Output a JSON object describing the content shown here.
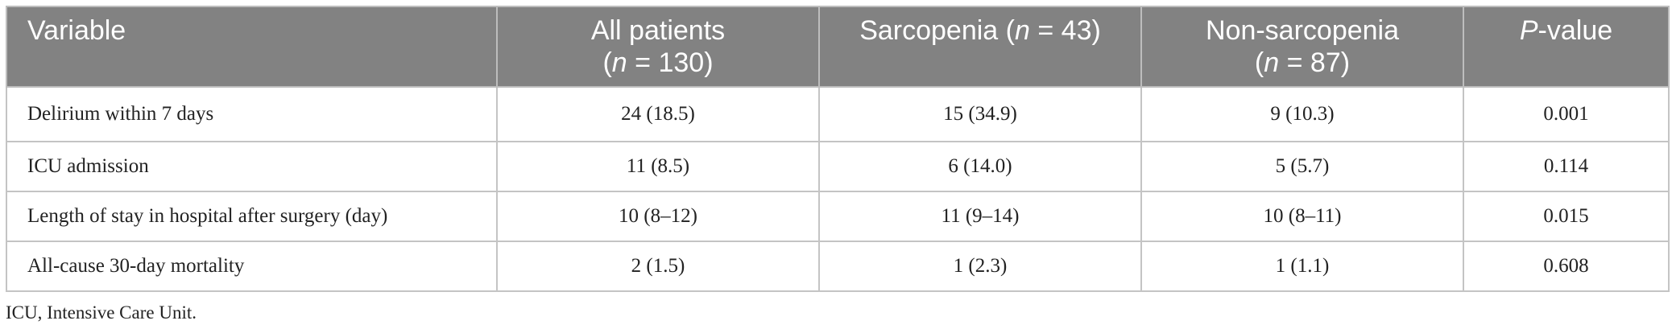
{
  "table": {
    "headers": {
      "variable": "Variable",
      "all_patients_line1": "All patients",
      "all_patients_n_sym": "n",
      "all_patients_n_rest": " = 130)",
      "sarcopenia_pre": "Sarcopenia (",
      "sarcopenia_n_sym": "n",
      "sarcopenia_rest": " = 43)",
      "non_sarcopenia_line1": "Non-sarcopenia",
      "non_sarcopenia_n_sym": "n",
      "non_sarcopenia_n_rest": " = 87)",
      "p_sym": "P",
      "p_rest": "-value"
    },
    "rows": [
      {
        "variable": "Delirium within 7 days",
        "all": "24 (18.5)",
        "sarcopenia": "15 (34.9)",
        "non_sarcopenia": "9 (10.3)",
        "p_value": "0.001"
      },
      {
        "variable": "ICU admission",
        "all": "11 (8.5)",
        "sarcopenia": "6 (14.0)",
        "non_sarcopenia": "5 (5.7)",
        "p_value": "0.114"
      },
      {
        "variable": "Length of stay in hospital after surgery (day)",
        "all": "10 (8–12)",
        "sarcopenia": "11 (9–14)",
        "non_sarcopenia": "10 (8–11)",
        "p_value": "0.015"
      },
      {
        "variable": "All-cause 30-day mortality",
        "all": "2 (1.5)",
        "sarcopenia": "1 (2.3)",
        "non_sarcopenia": "1 (1.1)",
        "p_value": "0.608"
      }
    ]
  },
  "footnote": "ICU, Intensive Care Unit.",
  "colors": {
    "header_bg": "#828282",
    "header_text": "#ffffff",
    "border": "#c4c4c4",
    "body_text": "#222222"
  }
}
